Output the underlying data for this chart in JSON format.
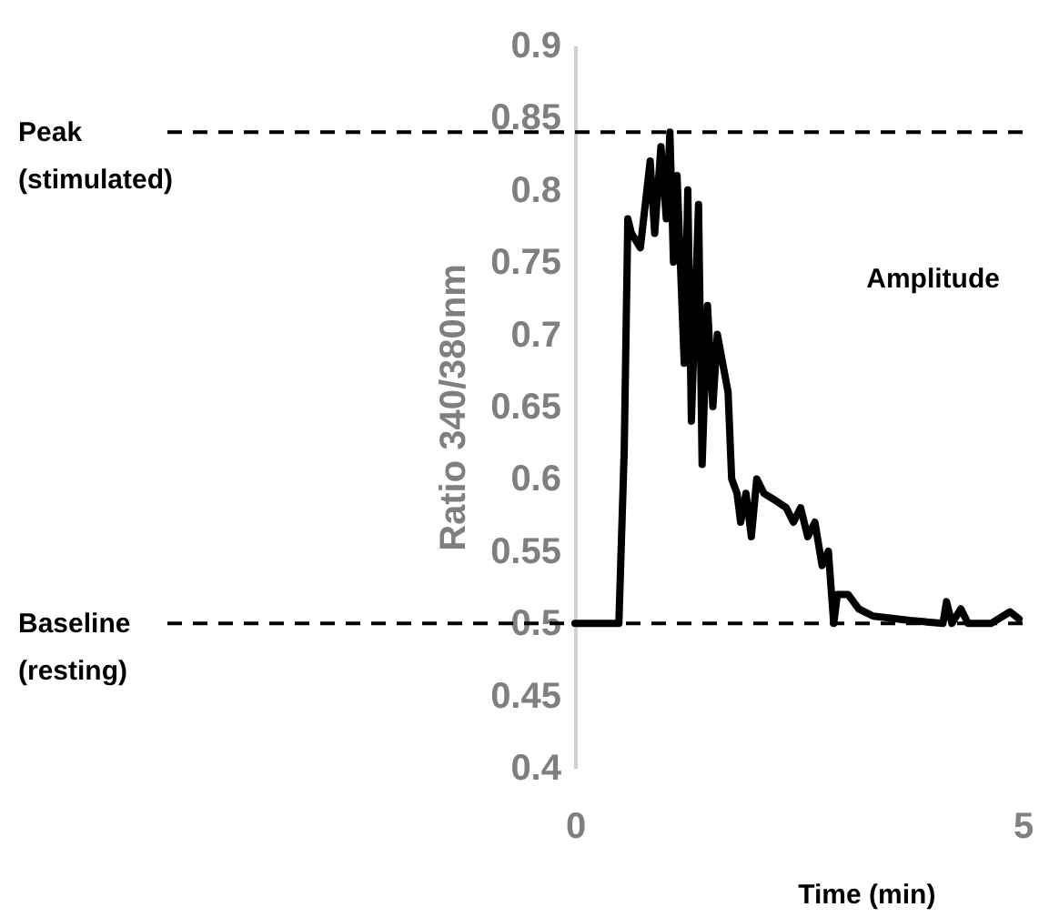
{
  "chart_data": {
    "type": "line",
    "xlabel": "Time (min)",
    "ylabel": "Ratio 340/380nm",
    "x": [
      0,
      0.49,
      0.55,
      0.59,
      0.63,
      0.73,
      0.84,
      0.89,
      0.96,
      1.02,
      1.06,
      1.1,
      1.14,
      1.22,
      1.26,
      1.3,
      1.38,
      1.42,
      1.48,
      1.54,
      1.59,
      1.65,
      1.71,
      1.75,
      1.81,
      1.85,
      1.91,
      1.97,
      2.03,
      2.11,
      2.24,
      2.36,
      2.44,
      2.52,
      2.6,
      2.68,
      2.76,
      2.83,
      2.89,
      2.93,
      3.05,
      3.17,
      3.33,
      3.74,
      4.11,
      4.15,
      4.21,
      4.31,
      4.39,
      4.65,
      4.86,
      4.96
    ],
    "series": [
      {
        "color": "#000000",
        "values": [
          0.5,
          0.5,
          0.62,
          0.78,
          0.77,
          0.76,
          0.82,
          0.77,
          0.83,
          0.78,
          0.84,
          0.75,
          0.81,
          0.68,
          0.8,
          0.64,
          0.79,
          0.61,
          0.72,
          0.65,
          0.7,
          0.68,
          0.66,
          0.6,
          0.59,
          0.57,
          0.59,
          0.56,
          0.6,
          0.59,
          0.585,
          0.58,
          0.57,
          0.58,
          0.56,
          0.57,
          0.54,
          0.55,
          0.5,
          0.52,
          0.52,
          0.51,
          0.505,
          0.502,
          0.5,
          0.515,
          0.5,
          0.51,
          0.5,
          0.5,
          0.508,
          0.503
        ]
      }
    ],
    "xlim": [
      0,
      5
    ],
    "xticks": [
      0,
      5
    ],
    "ylim": [
      0.4,
      0.9
    ],
    "yticks": [
      0.4,
      0.45,
      0.5,
      0.55,
      0.6,
      0.65,
      0.7,
      0.75,
      0.8,
      0.85,
      0.9
    ],
    "ref_lines": [
      {
        "axis": "y",
        "value": 0.84,
        "label": "Peak (stimulated)",
        "line_style": "dashed",
        "color": "#000000"
      },
      {
        "axis": "y",
        "value": 0.5,
        "label": "Baseline (resting)",
        "line_style": "dashed",
        "color": "#000000"
      }
    ],
    "annotations": [
      "Amplitude"
    ],
    "grid": false,
    "marker": "none",
    "line_style": "solid"
  }
}
